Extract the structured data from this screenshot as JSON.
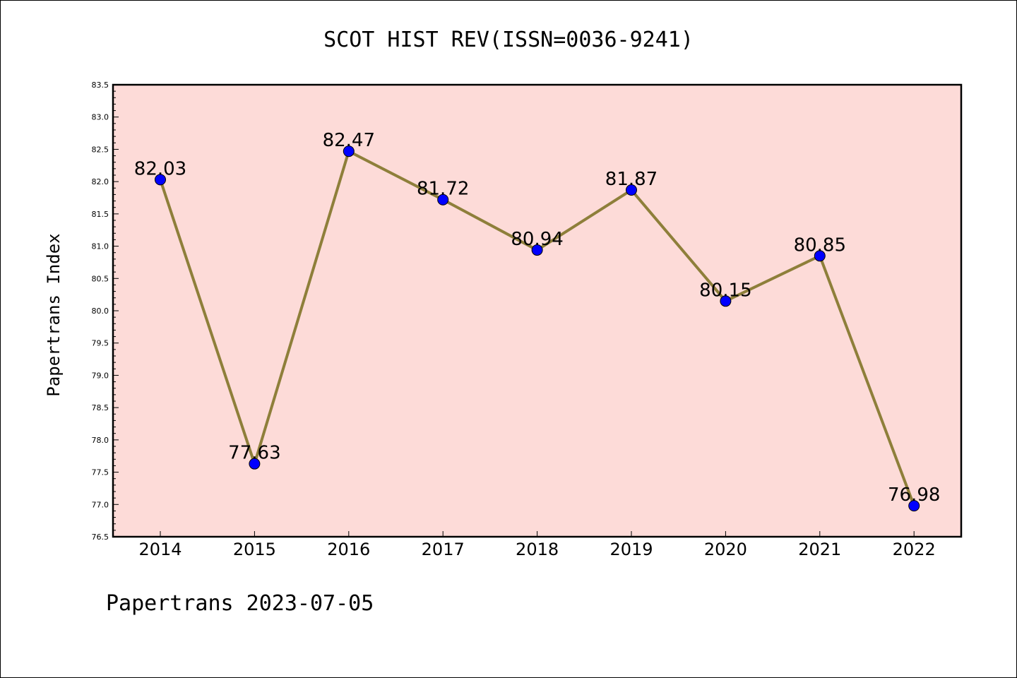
{
  "footer": "Papertrans 2023-07-05",
  "colors": {
    "plot_background": "#fddbd8",
    "line": "#8e7f3a",
    "marker": "#0000ff"
  },
  "chart_data": {
    "type": "line",
    "title": "SCOT HIST REV(ISSN=0036-9241)",
    "xlabel": "",
    "ylabel": "Papertrans Index",
    "ylim": [
      76.5,
      83.5
    ],
    "y_major_step": 0.5,
    "y_minor_step": 0.1,
    "x": [
      "2014",
      "2015",
      "2016",
      "2017",
      "2018",
      "2019",
      "2020",
      "2021",
      "2022"
    ],
    "series": [
      {
        "values": [
          82.03,
          77.63,
          82.47,
          81.72,
          80.94,
          81.87,
          80.15,
          80.85,
          76.98
        ],
        "labels": [
          "82.03",
          "77.63",
          "82.47",
          "81.72",
          "80.94",
          "81.87",
          "80.15",
          "80.85",
          "76.98"
        ]
      }
    ],
    "grid": false,
    "legend": "none"
  }
}
